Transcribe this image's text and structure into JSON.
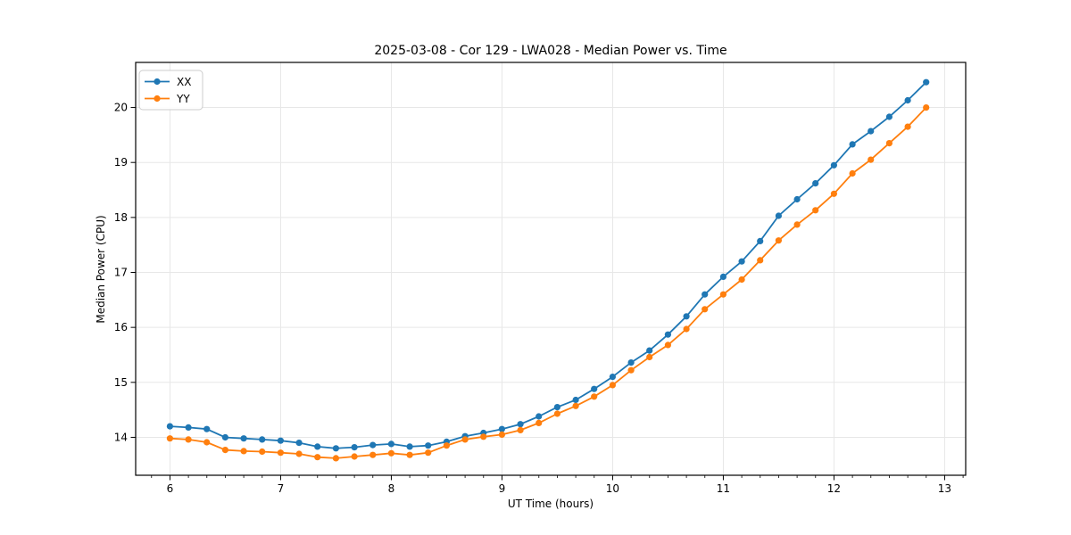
{
  "figure": {
    "background": "#ffffff",
    "text_color": "#000000",
    "grid_color": "#e7e7e7",
    "spine_color": "#000000"
  },
  "chart_data": {
    "type": "line",
    "title": "2025-03-08 - Cor 129 - LWA028 - Median Power vs. Time",
    "xlabel": "UT Time (hours)",
    "ylabel": "Median Power (CPU)",
    "xlim": [
      5.69,
      13.19
    ],
    "ylim": [
      13.31,
      20.82
    ],
    "x_ticks": [
      6,
      7,
      8,
      9,
      10,
      11,
      12,
      13
    ],
    "y_ticks": [
      14,
      15,
      16,
      17,
      18,
      19,
      20
    ],
    "x_minor_step": 0.1666667,
    "grid": true,
    "legend_position": "upper-left",
    "marker": "circle",
    "x": [
      6,
      6.167,
      6.333,
      6.5,
      6.667,
      6.833,
      7,
      7.167,
      7.333,
      7.5,
      7.667,
      7.833,
      8,
      8.167,
      8.333,
      8.5,
      8.667,
      8.833,
      9,
      9.167,
      9.333,
      9.5,
      9.667,
      9.833,
      10,
      10.167,
      10.333,
      10.5,
      10.667,
      10.833,
      11,
      11.167,
      11.333,
      11.5,
      11.667,
      11.833,
      12,
      12.167,
      12.333,
      12.5,
      12.667,
      12.833
    ],
    "series": [
      {
        "name": "XX",
        "color": "#1f77b4",
        "values": [
          14.2,
          14.18,
          14.15,
          14.0,
          13.98,
          13.96,
          13.94,
          13.9,
          13.83,
          13.8,
          13.82,
          13.86,
          13.88,
          13.83,
          13.85,
          13.92,
          14.02,
          14.08,
          14.15,
          14.24,
          14.38,
          14.55,
          14.68,
          14.88,
          15.1,
          15.36,
          15.58,
          15.87,
          16.2,
          16.6,
          16.92,
          17.2,
          17.57,
          18.03,
          18.33,
          18.62,
          18.95,
          19.33,
          19.57,
          19.83,
          20.13,
          20.46
        ]
      },
      {
        "name": "YY",
        "color": "#ff7f0e",
        "values": [
          13.98,
          13.96,
          13.91,
          13.77,
          13.75,
          13.74,
          13.72,
          13.7,
          13.64,
          13.62,
          13.65,
          13.68,
          13.71,
          13.68,
          13.72,
          13.85,
          13.96,
          14.01,
          14.05,
          14.13,
          14.26,
          14.43,
          14.57,
          14.74,
          14.95,
          15.22,
          15.46,
          15.68,
          15.97,
          16.33,
          16.6,
          16.87,
          17.22,
          17.58,
          17.87,
          18.13,
          18.43,
          18.8,
          19.05,
          19.35,
          19.65,
          20.0
        ]
      }
    ]
  }
}
